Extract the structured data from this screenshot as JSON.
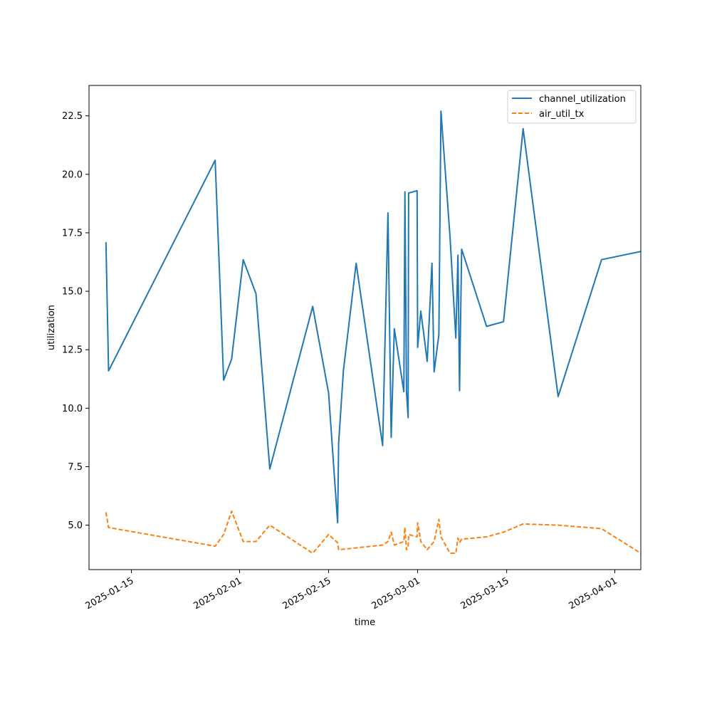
{
  "chart_data": {
    "type": "line",
    "xlabel": "time",
    "ylabel": "utilization",
    "x_axis_kind": "date",
    "xlim": [
      "2025-01-08T08:00",
      "2025-04-05T02:00"
    ],
    "ylim": [
      3.1,
      23.8
    ],
    "x_ticks": [
      "2025-01-15",
      "2025-02-01",
      "2025-02-15",
      "2025-03-01",
      "2025-03-15",
      "2025-04-01"
    ],
    "y_ticks": [
      5.0,
      7.5,
      10.0,
      12.5,
      15.0,
      17.5,
      20.0,
      22.5
    ],
    "y_tick_labels": [
      "5.0",
      "7.5",
      "10.0",
      "12.5",
      "15.0",
      "17.5",
      "20.0",
      "22.5"
    ],
    "grid": false,
    "legend_position": "upper-right",
    "series": [
      {
        "name": "channel_utilization",
        "color": "#1f77b4",
        "style": "solid",
        "points": [
          [
            "2025-01-11T00:00",
            17.1
          ],
          [
            "2025-01-11T10:00",
            11.6
          ],
          [
            "2025-01-28T04:00",
            20.6
          ],
          [
            "2025-01-29T12:00",
            11.2
          ],
          [
            "2025-01-30T18:00",
            12.1
          ],
          [
            "2025-02-01T14:00",
            16.35
          ],
          [
            "2025-02-03T14:00",
            14.9
          ],
          [
            "2025-02-05T18:00",
            7.4
          ],
          [
            "2025-02-12T12:00",
            14.35
          ],
          [
            "2025-02-15T00:00",
            10.65
          ],
          [
            "2025-02-16T10:00",
            5.1
          ],
          [
            "2025-02-16T14:00",
            8.5
          ],
          [
            "2025-02-17T08:00",
            11.6
          ],
          [
            "2025-02-19T08:00",
            16.2
          ],
          [
            "2025-02-23T12:00",
            8.4
          ],
          [
            "2025-02-24T08:00",
            18.35
          ],
          [
            "2025-02-24T20:00",
            8.75
          ],
          [
            "2025-02-25T08:00",
            13.4
          ],
          [
            "2025-02-26T20:00",
            10.7
          ],
          [
            "2025-02-27T00:00",
            19.25
          ],
          [
            "2025-02-27T06:00",
            10.7
          ],
          [
            "2025-02-27T12:00",
            9.6
          ],
          [
            "2025-02-27T14:00",
            19.2
          ],
          [
            "2025-02-28T22:00",
            19.3
          ],
          [
            "2025-02-29T00:00",
            12.6
          ],
          [
            "2025-03-01T12:00",
            14.15
          ],
          [
            "2025-03-02T00:00",
            13.1
          ],
          [
            "2025-03-02T12:00",
            12.0
          ],
          [
            "2025-03-03T06:00",
            16.2
          ],
          [
            "2025-03-03T14:00",
            11.55
          ],
          [
            "2025-03-04T08:00",
            13.15
          ],
          [
            "2025-03-04T16:00",
            22.7
          ],
          [
            "2025-03-06T02:00",
            17.35
          ],
          [
            "2025-03-07T00:00",
            13.0
          ],
          [
            "2025-03-07T08:00",
            16.55
          ],
          [
            "2025-03-07T14:00",
            10.75
          ],
          [
            "2025-03-07T22:00",
            16.8
          ],
          [
            "2025-03-11T20:00",
            13.5
          ],
          [
            "2025-03-14T12:00",
            13.7
          ],
          [
            "2025-03-17T14:00",
            21.95
          ],
          [
            "2025-03-23T02:00",
            10.5
          ],
          [
            "2025-03-29T22:00",
            16.35
          ],
          [
            "2025-04-05T02:00",
            16.7
          ]
        ]
      },
      {
        "name": "air_util_tx",
        "color": "#ff7f0e",
        "style": "dashed",
        "points": [
          [
            "2025-01-11T00:00",
            5.55
          ],
          [
            "2025-01-11T10:00",
            4.9
          ],
          [
            "2025-01-28T04:00",
            4.1
          ],
          [
            "2025-01-29T12:00",
            4.6
          ],
          [
            "2025-01-30T18:00",
            5.6
          ],
          [
            "2025-02-01T14:00",
            4.3
          ],
          [
            "2025-02-03T14:00",
            4.3
          ],
          [
            "2025-02-05T18:00",
            5.0
          ],
          [
            "2025-02-12T12:00",
            3.8
          ],
          [
            "2025-02-15T00:00",
            4.6
          ],
          [
            "2025-02-16T10:00",
            4.25
          ],
          [
            "2025-02-16T14:00",
            3.95
          ],
          [
            "2025-02-23T12:00",
            4.15
          ],
          [
            "2025-02-24T08:00",
            4.3
          ],
          [
            "2025-02-24T20:00",
            4.7
          ],
          [
            "2025-02-25T08:00",
            4.15
          ],
          [
            "2025-02-26T20:00",
            4.3
          ],
          [
            "2025-02-27T00:00",
            4.9
          ],
          [
            "2025-02-27T06:00",
            3.95
          ],
          [
            "2025-02-27T12:00",
            4.05
          ],
          [
            "2025-02-27T14:00",
            4.6
          ],
          [
            "2025-02-28T22:00",
            4.5
          ],
          [
            "2025-02-29T00:00",
            5.1
          ],
          [
            "2025-03-01T12:00",
            4.3
          ],
          [
            "2025-03-02T12:00",
            3.95
          ],
          [
            "2025-03-03T14:00",
            4.3
          ],
          [
            "2025-03-04T08:00",
            5.25
          ],
          [
            "2025-03-04T16:00",
            4.5
          ],
          [
            "2025-03-06T02:00",
            3.8
          ],
          [
            "2025-03-07T00:00",
            3.8
          ],
          [
            "2025-03-07T08:00",
            4.45
          ],
          [
            "2025-03-07T14:00",
            4.25
          ],
          [
            "2025-03-07T22:00",
            4.4
          ],
          [
            "2025-03-11T20:00",
            4.5
          ],
          [
            "2025-03-14T12:00",
            4.7
          ],
          [
            "2025-03-17T14:00",
            5.05
          ],
          [
            "2025-03-23T02:00",
            5.0
          ],
          [
            "2025-03-29T22:00",
            4.85
          ],
          [
            "2025-04-05T02:00",
            3.8
          ]
        ]
      }
    ]
  }
}
